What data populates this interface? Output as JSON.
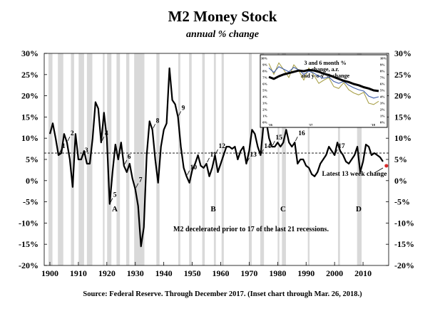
{
  "chart_data": {
    "type": "line",
    "title": "M2 Money Stock",
    "subtitle": "annual % change",
    "source": "Source: Federal Reserve.  Through December 2017.  (Inset chart through Mar. 26, 2018.)",
    "xlim": [
      1898,
      2019
    ],
    "ylim": [
      -20,
      30
    ],
    "x_ticks": [
      "1900",
      "1910",
      "1920",
      "1930",
      "1940",
      "1950",
      "1960",
      "1970",
      "1980",
      "1990",
      "2000",
      "2010"
    ],
    "y_ticks": [
      "30%",
      "25%",
      "20%",
      "15%",
      "10%",
      "5%",
      "0%",
      "-5%",
      "-10%",
      "-15%",
      "-20%"
    ],
    "reference_line": 6.5,
    "recessions": [
      [
        1899.5,
        1900.9
      ],
      [
        1902.8,
        1904.7
      ],
      [
        1907.4,
        1908.5
      ],
      [
        1910.1,
        1912.0
      ],
      [
        1913.0,
        1914.9
      ],
      [
        1918.6,
        1919.2
      ],
      [
        1920.1,
        1921.6
      ],
      [
        1923.4,
        1924.6
      ],
      [
        1926.8,
        1927.9
      ],
      [
        1929.6,
        1933.2
      ],
      [
        1937.4,
        1938.5
      ],
      [
        1945.1,
        1945.8
      ],
      [
        1948.9,
        1949.8
      ],
      [
        1953.5,
        1954.4
      ],
      [
        1957.6,
        1958.3
      ],
      [
        1960.3,
        1961.1
      ],
      [
        1969.9,
        1970.9
      ],
      [
        1973.9,
        1975.2
      ],
      [
        1980.0,
        1980.6
      ],
      [
        1981.5,
        1982.9
      ],
      [
        1990.6,
        1991.2
      ],
      [
        2001.2,
        2001.9
      ],
      [
        2007.9,
        2009.5
      ]
    ],
    "series": [
      {
        "x": [
          1900,
          1901,
          1902,
          1903,
          1904,
          1905,
          1906,
          1907,
          1908,
          1909,
          1910,
          1911,
          1912,
          1913,
          1914,
          1915,
          1916,
          1917,
          1918,
          1919,
          1920,
          1921,
          1922,
          1923,
          1924,
          1925,
          1926,
          1927,
          1928,
          1929,
          1930,
          1931,
          1932,
          1933,
          1934,
          1935,
          1936,
          1937,
          1938,
          1939,
          1940,
          1941,
          1942,
          1943,
          1944,
          1945,
          1946,
          1947,
          1948,
          1949,
          1950,
          1951,
          1952,
          1953,
          1954,
          1955,
          1956,
          1957,
          1958,
          1959,
          1960,
          1961,
          1962,
          1963,
          1964,
          1965,
          1966,
          1967,
          1968,
          1969,
          1970,
          1971,
          1972,
          1973,
          1974,
          1975,
          1976,
          1977,
          1978,
          1979,
          1980,
          1981,
          1982,
          1983,
          1984,
          1985,
          1986,
          1987,
          1988,
          1989,
          1990,
          1991,
          1992,
          1993,
          1994,
          1995,
          1996,
          1997,
          1998,
          1999,
          2000,
          2001,
          2002,
          2003,
          2004,
          2005,
          2006,
          2007,
          2008,
          2009,
          2010,
          2011,
          2012,
          2013,
          2014,
          2015,
          2016,
          2017
        ],
        "values": [
          11,
          13.5,
          10,
          6,
          6.5,
          11,
          9,
          5,
          -1.5,
          11,
          5,
          5,
          7,
          4,
          4,
          10,
          18.5,
          17,
          9,
          16,
          10,
          -5.5,
          2,
          8.5,
          5,
          9,
          3.5,
          2,
          4,
          0.5,
          -2,
          -6,
          -15.5,
          -11,
          6,
          14,
          12,
          5,
          -0.5,
          8,
          12,
          13.5,
          26.5,
          19,
          18,
          15,
          8,
          3,
          1,
          -0.5,
          2.5,
          4,
          6,
          3.5,
          3,
          4,
          1,
          3,
          6,
          2,
          4,
          6,
          8,
          8,
          7.5,
          8,
          5,
          7,
          8,
          4,
          7,
          12,
          11,
          8,
          6,
          13,
          14,
          10,
          8,
          8,
          9,
          8,
          9,
          12,
          9,
          8,
          9,
          4,
          5,
          5,
          3.5,
          3,
          1.5,
          1,
          2,
          4,
          5,
          6,
          8,
          7,
          6,
          9,
          7,
          6,
          4.5,
          4,
          5,
          6,
          8,
          2,
          4.5,
          8.5,
          8,
          6,
          6.5,
          6,
          5.5,
          4.5
        ]
      }
    ],
    "point_labels": [
      {
        "x": 1903,
        "text": "1"
      },
      {
        "x": 1906,
        "text": "2"
      },
      {
        "x": 1911,
        "text": "3"
      },
      {
        "x": 1918,
        "text": "4"
      },
      {
        "x": 1921,
        "text": "5"
      },
      {
        "x": 1926,
        "text": "6"
      },
      {
        "x": 1930,
        "text": "7"
      },
      {
        "x": 1936,
        "text": "8"
      },
      {
        "x": 1945,
        "text": "9"
      },
      {
        "x": 1948,
        "text": "10"
      },
      {
        "x": 1955,
        "text": "11"
      },
      {
        "x": 1958,
        "text": "12"
      },
      {
        "x": 1969,
        "text": "13"
      },
      {
        "x": 1974,
        "text": "14"
      },
      {
        "x": 1978,
        "text": "15"
      },
      {
        "x": 1986,
        "text": "16"
      },
      {
        "x": 2000,
        "text": "17"
      }
    ],
    "period_labels": [
      "A",
      "B",
      "C",
      "D"
    ],
    "note": "M2 decelerated prior to 17 of the last 21 recessions.",
    "latest_label": "Latest 13 week change",
    "latest_value": 3.5,
    "inset": {
      "title_lines": [
        "3 and 6 month %",
        "change, a.r.",
        "and y-o-y % change"
      ],
      "y_ticks": [
        "10%",
        "9%",
        "8%",
        "7%",
        "6%",
        "5%",
        "4%",
        "3%",
        "2%",
        "1%",
        "0%"
      ],
      "x_ticks": [
        "'16",
        "'17",
        "'18"
      ],
      "ylim": [
        0,
        10
      ],
      "series": [
        {
          "name": "",
          "color": "#000000",
          "values": [
            7.1,
            6.8,
            7.2,
            7.5,
            7.7,
            7.9,
            8.1,
            8.0,
            8.2,
            8.1,
            7.9,
            7.6,
            7.4,
            7.1,
            6.8,
            6.5,
            6.3,
            6.0,
            5.8,
            5.5,
            5.3,
            5.0,
            4.9
          ]
        },
        {
          "name": "",
          "color": "#3d5ca8",
          "values": [
            8.5,
            7.8,
            8.7,
            8.3,
            7.9,
            8.6,
            8.2,
            7.5,
            8.0,
            7.7,
            7.2,
            6.9,
            7.1,
            6.4,
            6.1,
            6.4,
            5.8,
            5.4,
            5.1,
            4.9,
            4.1,
            3.8,
            4.0
          ]
        },
        {
          "name": "",
          "color": "#a9a14a",
          "values": [
            9.2,
            7.5,
            9.3,
            8.2,
            7.0,
            9.0,
            8.1,
            6.6,
            8.5,
            7.4,
            6.1,
            6.6,
            7.0,
            5.6,
            5.3,
            6.2,
            5.1,
            4.6,
            4.3,
            4.7,
            3.0,
            2.8,
            3.3
          ]
        }
      ]
    }
  }
}
